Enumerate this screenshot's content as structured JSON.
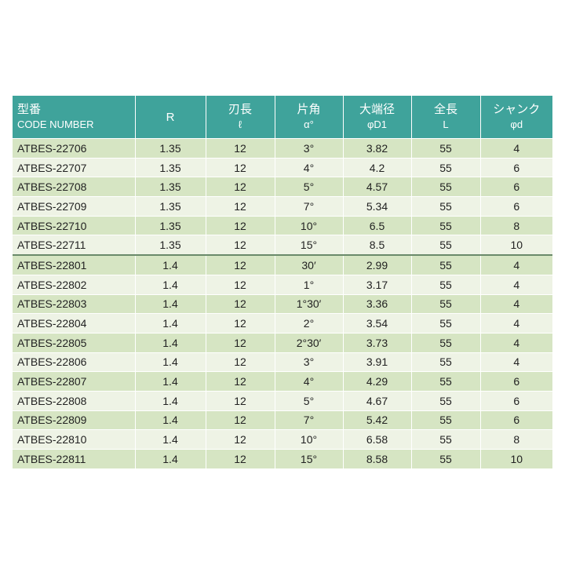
{
  "table": {
    "header": [
      {
        "lines": [
          "型番",
          "CODE NUMBER"
        ]
      },
      {
        "lines": [
          "R"
        ]
      },
      {
        "lines": [
          "刃長",
          "ℓ"
        ]
      },
      {
        "lines": [
          "片角",
          "α°"
        ]
      },
      {
        "lines": [
          "大端径",
          "φD1"
        ]
      },
      {
        "lines": [
          "全長",
          "L"
        ]
      },
      {
        "lines": [
          "シャンク",
          "φd"
        ]
      }
    ],
    "rows": [
      [
        "ATBES-22706",
        "1.35",
        "12",
        "3°",
        "3.82",
        "55",
        "4"
      ],
      [
        "ATBES-22707",
        "1.35",
        "12",
        "4°",
        "4.2",
        "55",
        "6"
      ],
      [
        "ATBES-22708",
        "1.35",
        "12",
        "5°",
        "4.57",
        "55",
        "6"
      ],
      [
        "ATBES-22709",
        "1.35",
        "12",
        "7°",
        "5.34",
        "55",
        "6"
      ],
      [
        "ATBES-22710",
        "1.35",
        "12",
        "10°",
        "6.5",
        "55",
        "8"
      ],
      [
        "ATBES-22711",
        "1.35",
        "12",
        "15°",
        "8.5",
        "55",
        "10"
      ],
      [
        "ATBES-22801",
        "1.4",
        "12",
        "30′",
        "2.99",
        "55",
        "4"
      ],
      [
        "ATBES-22802",
        "1.4",
        "12",
        "1°",
        "3.17",
        "55",
        "4"
      ],
      [
        "ATBES-22803",
        "1.4",
        "12",
        "1°30′",
        "3.36",
        "55",
        "4"
      ],
      [
        "ATBES-22804",
        "1.4",
        "12",
        "2°",
        "3.54",
        "55",
        "4"
      ],
      [
        "ATBES-22805",
        "1.4",
        "12",
        "2°30′",
        "3.73",
        "55",
        "4"
      ],
      [
        "ATBES-22806",
        "1.4",
        "12",
        "3°",
        "3.91",
        "55",
        "4"
      ],
      [
        "ATBES-22807",
        "1.4",
        "12",
        "4°",
        "4.29",
        "55",
        "6"
      ],
      [
        "ATBES-22808",
        "1.4",
        "12",
        "5°",
        "4.67",
        "55",
        "6"
      ],
      [
        "ATBES-22809",
        "1.4",
        "12",
        "7°",
        "5.42",
        "55",
        "6"
      ],
      [
        "ATBES-22810",
        "1.4",
        "12",
        "10°",
        "6.58",
        "55",
        "8"
      ],
      [
        "ATBES-22811",
        "1.4",
        "12",
        "15°",
        "8.58",
        "55",
        "10"
      ]
    ]
  }
}
